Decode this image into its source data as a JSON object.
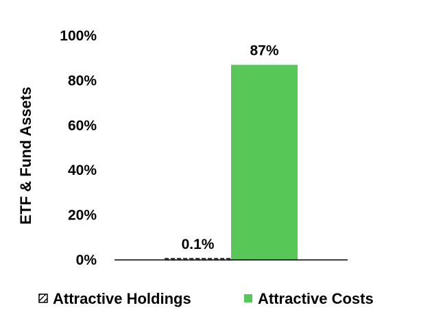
{
  "chart_data": {
    "type": "bar",
    "categories": [
      "Attractive Holdings",
      "Attractive Costs"
    ],
    "series": [
      {
        "name": "Attractive Holdings",
        "values": [
          0.1,
          null
        ],
        "color": "#ffffff",
        "pattern": "dashed",
        "data_label": "0.1%"
      },
      {
        "name": "Attractive Costs",
        "values": [
          null,
          87
        ],
        "color": "#57c857",
        "pattern": "solid",
        "data_label": "87%"
      }
    ],
    "title": "",
    "xlabel": "",
    "ylabel": "ETF & Fund Assets",
    "ylim": [
      0,
      100
    ],
    "yticks": [
      "0%",
      "20%",
      "40%",
      "60%",
      "80%",
      "100%"
    ],
    "grid": false,
    "legend_position": "bottom"
  }
}
